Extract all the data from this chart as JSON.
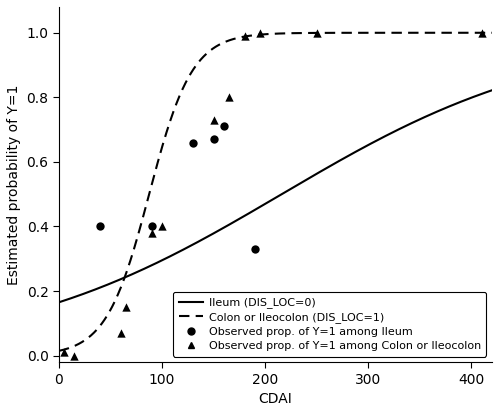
{
  "title": "",
  "xlabel": "CDAI",
  "ylabel": "Estimated probability of Y=1",
  "xlim": [
    0,
    420
  ],
  "ylim": [
    -0.02,
    1.08
  ],
  "xticks": [
    0,
    100,
    200,
    300,
    400
  ],
  "yticks": [
    0.0,
    0.2,
    0.4,
    0.6,
    0.8,
    1.0
  ],
  "logistic_ileum": {
    "beta0": -1.62,
    "beta1": 0.0075,
    "color": "#000000",
    "linestyle": "solid",
    "linewidth": 1.5
  },
  "logistic_colon": {
    "beta0": -4.2,
    "beta1": 0.048,
    "color": "#000000",
    "linestyle": "dashed",
    "linewidth": 1.5
  },
  "obs_ileum_x": [
    40,
    90,
    130,
    150,
    160,
    190
  ],
  "obs_ileum_y": [
    0.4,
    0.4,
    0.66,
    0.67,
    0.71,
    0.33
  ],
  "obs_colon_x": [
    5,
    15,
    60,
    65,
    90,
    100,
    150,
    165,
    180,
    195,
    250,
    410
  ],
  "obs_colon_y": [
    0.01,
    0.0,
    0.07,
    0.15,
    0.38,
    0.4,
    0.73,
    0.8,
    0.99,
    1.0,
    1.0,
    1.0
  ],
  "legend_labels": [
    "Ileum (DIS_LOC=0)",
    "Colon or Ileocolon (DIS_LOC=1)",
    "Observed prop. of Y=1 among Ileum",
    "Observed prop. of Y=1 among Colon or Ileocolon"
  ],
  "marker_size": 6,
  "background_color": "#ffffff",
  "font_size": 10,
  "legend_fontsize": 8
}
